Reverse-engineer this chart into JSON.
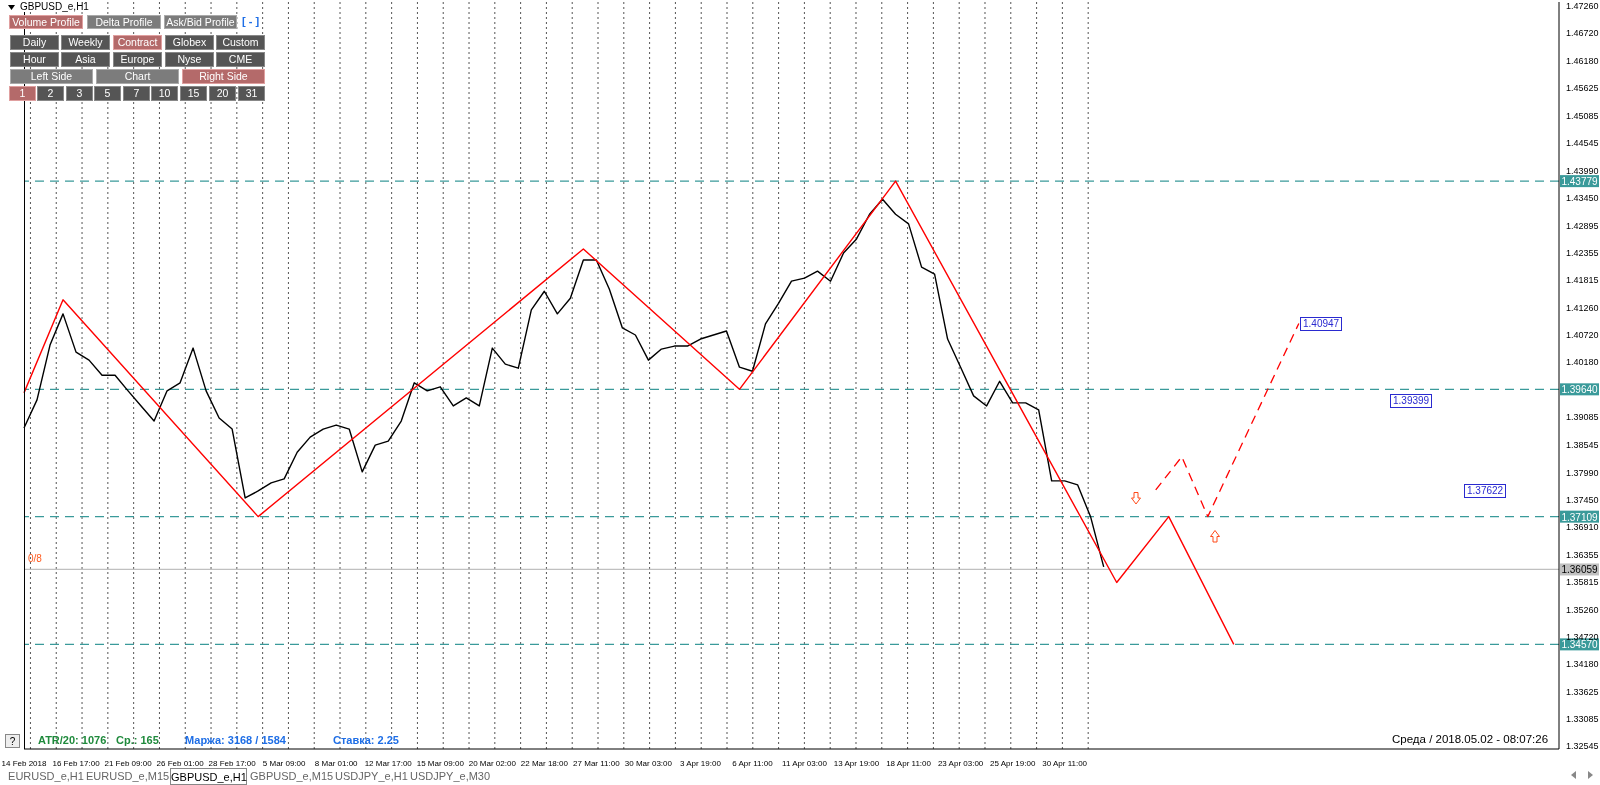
{
  "chart_data": {
    "type": "line",
    "title": "GBPUSD_e,H1",
    "categories": [
      "14 Feb 2018",
      null,
      null,
      null,
      "16 Feb 17:00",
      null,
      null,
      null,
      "21 Feb 09:00",
      null,
      null,
      null,
      "26 Feb 01:00",
      null,
      null,
      null,
      "28 Feb 17:00",
      null,
      null,
      null,
      "5 Mar 09:00",
      null,
      null,
      null,
      "8 Mar 01:00",
      null,
      null,
      null,
      "12 Mar 17:00",
      null,
      null,
      null,
      "15 Mar 09:00",
      null,
      null,
      null,
      "20 Mar 02:00",
      null,
      null,
      null,
      "22 Mar 18:00",
      null,
      null,
      null,
      "27 Mar 11:00",
      null,
      null,
      null,
      "30 Mar 03:00",
      null,
      null,
      null,
      "3 Apr 19:00",
      null,
      null,
      null,
      "6 Apr 11:00",
      null,
      null,
      null,
      "11 Apr 03:00",
      null,
      null,
      null,
      "13 Apr 19:00",
      null,
      null,
      null,
      "18 Apr 11:00",
      null,
      null,
      null,
      "23 Apr 03:00",
      null,
      null,
      null,
      "25 Apr 19:00",
      null,
      null,
      null,
      "30 Apr 11:00",
      null,
      null,
      null,
      null,
      null,
      null,
      null,
      null,
      null,
      null,
      null,
      null,
      null,
      null,
      null,
      null,
      null,
      null,
      null,
      null,
      null,
      null,
      null,
      null,
      null,
      null,
      null,
      null,
      null,
      null,
      null,
      null,
      null,
      null,
      null,
      null,
      null,
      null
    ],
    "series": [
      {
        "color": "#000000",
        "values": [
          1.3887,
          1.3943,
          1.4052,
          1.4114,
          1.4038,
          1.4022,
          1.3992,
          1.3992,
          1.3961,
          1.3931,
          1.3901,
          1.3961,
          1.3977,
          1.4046,
          1.3961,
          1.3907,
          1.3885,
          1.3748,
          1.3762,
          1.3778,
          1.3786,
          1.3839,
          1.3869,
          1.3885,
          1.3893,
          1.3885,
          1.38,
          1.3853,
          1.3861,
          1.3901,
          1.3977,
          1.3961,
          1.3969,
          1.3931,
          1.3947,
          1.3931,
          1.4046,
          1.4014,
          1.4006,
          1.4122,
          1.4159,
          1.4114,
          1.4145,
          1.4221,
          1.4221,
          1.4163,
          1.4086,
          1.4072,
          1.4022,
          1.4044,
          1.405,
          1.405,
          1.4064,
          1.4072,
          1.408,
          1.4008,
          1.4,
          1.4094,
          1.4135,
          1.4179,
          1.4185,
          1.4199,
          1.4179,
          1.4235,
          1.4263,
          1.4312,
          1.4342,
          1.4312,
          1.4293,
          1.4207,
          1.4193,
          1.4064,
          1.4008,
          1.3951,
          1.3931,
          1.398,
          1.3937,
          1.3937,
          1.3923,
          1.3782,
          1.3782,
          1.3774,
          1.371,
          1.3611,
          null,
          null,
          null,
          null,
          null,
          null,
          null,
          null,
          null,
          null,
          null,
          null,
          null,
          null,
          null,
          null,
          null,
          null,
          null,
          null,
          null,
          null,
          null,
          null,
          null,
          null,
          null,
          null,
          null,
          null,
          null,
          null,
          null,
          null,
          null
        ]
      },
      {
        "color": "#ff0000",
        "values": [
          1.3957,
          null,
          null,
          1.4142,
          null,
          null,
          null,
          null,
          null,
          null,
          null,
          null,
          null,
          null,
          null,
          null,
          null,
          null,
          1.3711,
          null,
          null,
          null,
          null,
          null,
          null,
          null,
          null,
          null,
          null,
          null,
          null,
          null,
          null,
          null,
          null,
          null,
          null,
          null,
          null,
          null,
          null,
          null,
          null,
          1.4243,
          null,
          null,
          null,
          null,
          null,
          null,
          null,
          null,
          null,
          null,
          null,
          1.3964,
          null,
          null,
          null,
          null,
          null,
          null,
          null,
          null,
          null,
          null,
          null,
          1.4378,
          null,
          null,
          null,
          null,
          null,
          null,
          null,
          null,
          null,
          null,
          null,
          null,
          null,
          null,
          null,
          null,
          1.358,
          null,
          null,
          null,
          1.3711,
          null,
          null,
          null,
          null,
          1.3457,
          null,
          null,
          null,
          null,
          null,
          null,
          null,
          null,
          null,
          null,
          null,
          null,
          null,
          null,
          null,
          null,
          null,
          null,
          null,
          null,
          null,
          null,
          null,
          null,
          null
        ]
      },
      {
        "color": "#ff0000",
        "line_style": "dashed",
        "values": [
          null,
          null,
          null,
          null,
          null,
          null,
          null,
          null,
          null,
          null,
          null,
          null,
          null,
          null,
          null,
          null,
          null,
          null,
          null,
          null,
          null,
          null,
          null,
          null,
          null,
          null,
          null,
          null,
          null,
          null,
          null,
          null,
          null,
          null,
          null,
          null,
          null,
          null,
          null,
          null,
          null,
          null,
          null,
          null,
          null,
          null,
          null,
          null,
          null,
          null,
          null,
          null,
          null,
          null,
          null,
          null,
          null,
          null,
          null,
          null,
          null,
          null,
          null,
          null,
          null,
          null,
          null,
          null,
          null,
          null,
          null,
          null,
          null,
          null,
          null,
          null,
          null,
          null,
          null,
          null,
          null,
          null,
          null,
          null,
          null,
          null,
          null,
          1.3764,
          null,
          1.383,
          null,
          1.3711,
          null,
          null,
          null,
          null,
          null,
          null,
          1.4095,
          null,
          null,
          null,
          null,
          null,
          null,
          null,
          null,
          null,
          null,
          null,
          null,
          null,
          null,
          null,
          null,
          null,
          null,
          null,
          null
        ]
      }
    ],
    "ylim": [
      1.3249,
      1.4734
    ],
    "yticks": [
      {
        "value": 1.4726,
        "label": "1.47260"
      },
      {
        "value": 1.4672,
        "label": "1.46720"
      },
      {
        "value": 1.4618,
        "label": "1.46180"
      },
      {
        "value": 1.45625,
        "label": "1.45625"
      },
      {
        "value": 1.45085,
        "label": "1.45085"
      },
      {
        "value": 1.44545,
        "label": "1.44545"
      },
      {
        "value": 1.4399,
        "label": "1.43990"
      },
      {
        "value": 1.4345,
        "label": "1.43450"
      },
      {
        "value": 1.42895,
        "label": "1.42895"
      },
      {
        "value": 1.42355,
        "label": "1.42355"
      },
      {
        "value": 1.41815,
        "label": "1.41815"
      },
      {
        "value": 1.4126,
        "label": "1.41260"
      },
      {
        "value": 1.4072,
        "label": "1.40720"
      },
      {
        "value": 1.4018,
        "label": "1.40180"
      },
      {
        "value": 1.39085,
        "label": "1.39085"
      },
      {
        "value": 1.38545,
        "label": "1.38545"
      },
      {
        "value": 1.3799,
        "label": "1.37990"
      },
      {
        "value": 1.3745,
        "label": "1.37450"
      },
      {
        "value": 1.3691,
        "label": "1.36910"
      },
      {
        "value": 1.36355,
        "label": "1.36355"
      },
      {
        "value": 1.35815,
        "label": "1.35815"
      },
      {
        "value": 1.3526,
        "label": "1.35260"
      },
      {
        "value": 1.3472,
        "label": "1.34720"
      },
      {
        "value": 1.3418,
        "label": "1.34180"
      },
      {
        "value": 1.33625,
        "label": "1.33625"
      },
      {
        "value": 1.33085,
        "label": "1.33085"
      },
      {
        "value": 1.32545,
        "label": "1.32545"
      }
    ],
    "grid": "x",
    "ref_lines": [
      {
        "axis": "y",
        "value": 1.43779,
        "label": "1.43779",
        "color": "#3a9a9a",
        "line_style": "dashed"
      },
      {
        "axis": "y",
        "value": 1.3964,
        "label": "1.39640",
        "color": "#3a9a9a",
        "line_style": "dashed"
      },
      {
        "axis": "y",
        "value": 1.37109,
        "label": "1.37109",
        "color": "#3a9a9a",
        "line_style": "dashed"
      },
      {
        "axis": "y",
        "value": 1.3457,
        "label": "1.34570",
        "color": "#3a9a9a",
        "line_style": "dashed"
      },
      {
        "axis": "y",
        "value": 1.36059,
        "label": "1.36059",
        "color": "#c0c0c0",
        "line_style": "solid"
      }
    ],
    "annotations": [
      "0/8",
      {
        "text": "1.40947",
        "y": 1.40947
      },
      {
        "text": "1.39399",
        "y": 1.39399
      },
      {
        "text": "1.37622",
        "y": 1.37622
      },
      "ATR/20: 1076",
      "Ср.: 165",
      "Маржа: 3168 / 1584",
      "Ставка: 2.25",
      "Среда / 2018.05.02 - 08:07:26",
      "?",
      "Volume Profile",
      "Delta Profile",
      "Ask/Bid Profile",
      "[ - ]",
      "Daily",
      "Weekly",
      "Contract",
      "Globex",
      "Custom",
      "Hour",
      "Asia",
      "Europe",
      "Nyse",
      "CME",
      "Left Side",
      "Chart",
      "Right Side",
      "1",
      "2",
      "3",
      "5",
      "7",
      "10",
      "15",
      "20",
      "31",
      "EURUSD_e,H1",
      "EURUSD_e,M15",
      "GBPUSD_e,H1",
      "GBPUSD_e,M15",
      "USDJPY_e,H1",
      "USDJPY_e,M30"
    ]
  }
}
